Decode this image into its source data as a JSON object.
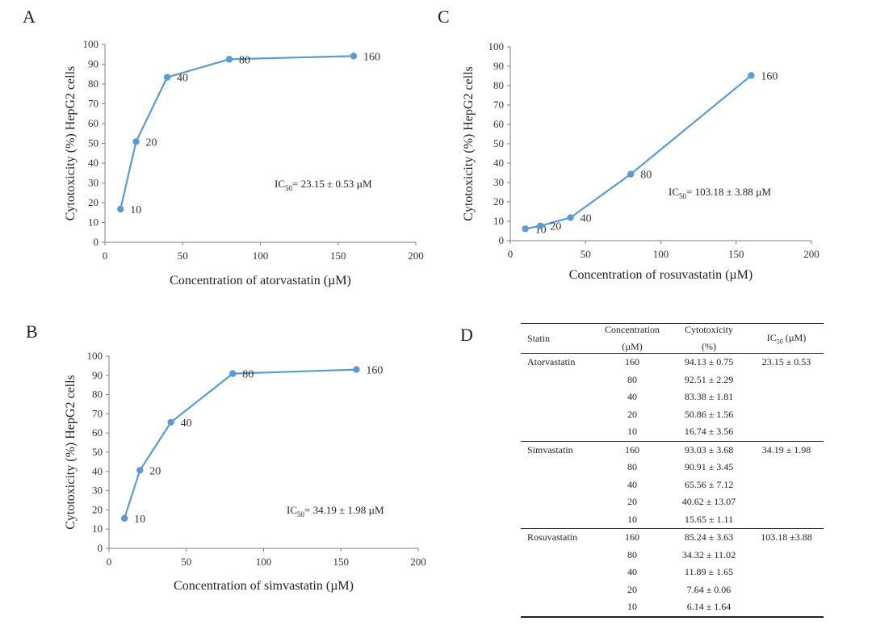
{
  "panels": {
    "A": "A",
    "B": "B",
    "C": "C",
    "D": "D"
  },
  "chart_data": [
    {
      "id": "A",
      "type": "line",
      "x": [
        10,
        20,
        40,
        80,
        160
      ],
      "y": [
        16.74,
        50.86,
        83.38,
        92.51,
        94.13
      ],
      "point_labels": [
        "10",
        "20",
        "40",
        "80",
        "160"
      ],
      "xlabel": "Concentration of atorvastatin (µM)",
      "ylabel": "Cytotoxicity (%) HepG2 cells",
      "xlim": [
        0,
        200
      ],
      "ylim": [
        0,
        100
      ],
      "xticks": [
        0,
        50,
        100,
        150,
        200
      ],
      "yticks": [
        0,
        10,
        20,
        30,
        40,
        50,
        60,
        70,
        80,
        90,
        100
      ],
      "annotation": {
        "prefix": "IC",
        "sub": "50",
        "text": "= 23.15 ± 0.53 µM"
      },
      "color": "#5b9bd5"
    },
    {
      "id": "B",
      "type": "line",
      "x": [
        10,
        20,
        40,
        80,
        160
      ],
      "y": [
        15.65,
        40.62,
        65.56,
        90.91,
        93.03
      ],
      "point_labels": [
        "10",
        "20",
        "40",
        "80",
        "160"
      ],
      "xlabel": "Concentration of simvastatin (µM)",
      "ylabel": "Cytotoxicity (%) HepG2 cells",
      "xlim": [
        0,
        200
      ],
      "ylim": [
        0,
        100
      ],
      "xticks": [
        0,
        50,
        100,
        150,
        200
      ],
      "yticks": [
        0,
        10,
        20,
        30,
        40,
        50,
        60,
        70,
        80,
        90,
        100
      ],
      "annotation": {
        "prefix": "IC",
        "sub": "50",
        "text": "= 34.19 ± 1.98 µM"
      },
      "color": "#5b9bd5"
    },
    {
      "id": "C",
      "type": "line",
      "x": [
        10,
        20,
        40,
        80,
        160
      ],
      "y": [
        6.14,
        7.64,
        11.89,
        34.32,
        85.24
      ],
      "point_labels": [
        "10",
        "20",
        "40",
        "80",
        "160"
      ],
      "xlabel": "Concentration of rosuvastatin (µM)",
      "ylabel": "Cytotoxicity (%) HepG2 cells",
      "xlim": [
        0,
        200
      ],
      "ylim": [
        0,
        100
      ],
      "xticks": [
        0,
        50,
        100,
        150,
        200
      ],
      "yticks": [
        0,
        10,
        20,
        30,
        40,
        50,
        60,
        70,
        80,
        90,
        100
      ],
      "annotation": {
        "prefix": "IC",
        "sub": "50",
        "text": "= 103.18 ± 3.88 µM"
      },
      "color": "#5b9bd5"
    }
  ],
  "table": {
    "headers": {
      "statin": "Statin",
      "conc_line1": "Concentration",
      "conc_line2": "(µM)",
      "cyto_line1": "Cytotoxicity",
      "cyto_line2": "(%)",
      "ic_prefix": "IC",
      "ic_sub": "50",
      "ic_suffix": " (µM)"
    },
    "groups": [
      {
        "statin": "Atorvastatin",
        "ic50": "23.15 ± 0.53",
        "rows": [
          {
            "conc": "160",
            "cyto": "94.13 ± 0.75"
          },
          {
            "conc": "80",
            "cyto": "92.51 ± 2.29"
          },
          {
            "conc": "40",
            "cyto": "83.38 ± 1.81"
          },
          {
            "conc": "20",
            "cyto": "50.86 ± 1.56"
          },
          {
            "conc": "10",
            "cyto": "16.74 ± 3.56"
          }
        ]
      },
      {
        "statin": "Simvastatin",
        "ic50": "34.19 ± 1.98",
        "rows": [
          {
            "conc": "160",
            "cyto": "93.03 ± 3.68"
          },
          {
            "conc": "80",
            "cyto": "90.91 ± 3.45"
          },
          {
            "conc": "40",
            "cyto": "65.56 ± 7.12"
          },
          {
            "conc": "20",
            "cyto": "40.62 ± 13.07"
          },
          {
            "conc": "10",
            "cyto": "15.65 ± 1.11"
          }
        ]
      },
      {
        "statin": "Rosuvastatin",
        "ic50": "103.18 ±3.88",
        "rows": [
          {
            "conc": "160",
            "cyto": "85.24 ± 3.63"
          },
          {
            "conc": "80",
            "cyto": "34.32 ± 11.02"
          },
          {
            "conc": "40",
            "cyto": "11.89 ± 1.65"
          },
          {
            "conc": "20",
            "cyto": "7.64 ± 0.06"
          },
          {
            "conc": "10",
            "cyto": "6.14 ± 1.64"
          }
        ]
      }
    ]
  }
}
